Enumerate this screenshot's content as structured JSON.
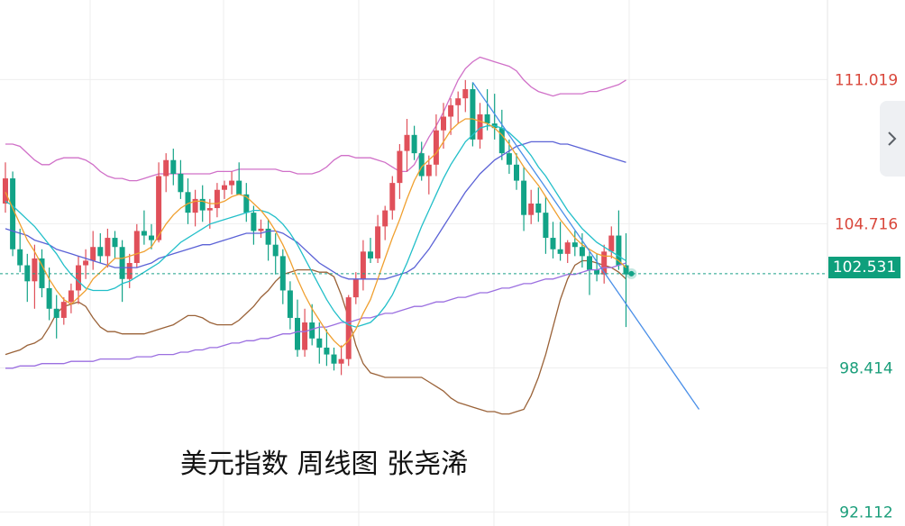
{
  "chart_data": {
    "type": "candlestick",
    "title": "美元指数 周线图 张尧浠",
    "y_axis": {
      "range": [
        91.5,
        114.5
      ],
      "labels": [
        {
          "value": 111.019,
          "text": "111.019",
          "color": "#d9473b"
        },
        {
          "value": 104.716,
          "text": "104.716",
          "color": "#d9473b"
        },
        {
          "value": 98.414,
          "text": "98.414",
          "color": "#1a9e7a"
        },
        {
          "value": 92.112,
          "text": "92.112",
          "color": "#1a9e7a"
        }
      ]
    },
    "current_price": {
      "value": 102.531,
      "text": "102.531",
      "color": "#0e9f7c"
    },
    "grid": true,
    "colors": {
      "up": "#e0505a",
      "down": "#12a387"
    },
    "candles": [
      [
        105.6,
        107.4,
        105.2,
        106.7
      ],
      [
        106.7,
        107.0,
        103.3,
        103.6
      ],
      [
        103.6,
        104.5,
        102.6,
        102.9
      ],
      [
        102.9,
        103.4,
        101.3,
        102.2
      ],
      [
        102.2,
        103.8,
        101.0,
        103.2
      ],
      [
        103.2,
        103.6,
        101.5,
        101.9
      ],
      [
        101.9,
        102.8,
        100.5,
        101.0
      ],
      [
        101.0,
        101.6,
        99.7,
        100.6
      ],
      [
        100.6,
        101.5,
        100.3,
        101.3
      ],
      [
        101.3,
        102.1,
        100.8,
        101.8
      ],
      [
        101.8,
        103.3,
        101.2,
        102.9
      ],
      [
        102.9,
        103.6,
        102.3,
        103.1
      ],
      [
        103.1,
        104.4,
        102.7,
        103.7
      ],
      [
        103.7,
        104.3,
        103.0,
        103.3
      ],
      [
        103.3,
        104.5,
        102.8,
        104.1
      ],
      [
        104.1,
        104.4,
        103.2,
        103.7
      ],
      [
        103.7,
        104.0,
        101.3,
        102.3
      ],
      [
        102.3,
        103.4,
        101.9,
        103.0
      ],
      [
        103.0,
        104.7,
        102.8,
        104.4
      ],
      [
        104.4,
        105.3,
        103.8,
        104.2
      ],
      [
        104.2,
        104.7,
        103.6,
        104.0
      ],
      [
        104.0,
        107.4,
        103.9,
        106.8
      ],
      [
        106.8,
        107.8,
        106.1,
        107.5
      ],
      [
        107.5,
        108.0,
        106.4,
        106.9
      ],
      [
        106.9,
        107.5,
        105.8,
        106.1
      ],
      [
        106.1,
        106.7,
        104.7,
        105.2
      ],
      [
        105.2,
        106.2,
        104.6,
        105.8
      ],
      [
        105.8,
        106.4,
        104.8,
        105.3
      ],
      [
        105.3,
        105.8,
        104.5,
        105.4
      ],
      [
        105.4,
        106.5,
        105.0,
        106.2
      ],
      [
        106.2,
        106.6,
        105.8,
        106.4
      ],
      [
        106.4,
        107.0,
        106.0,
        106.6
      ],
      [
        106.6,
        107.4,
        106.1,
        106.0
      ],
      [
        106.0,
        106.5,
        104.8,
        105.2
      ],
      [
        105.2,
        105.5,
        103.8,
        104.4
      ],
      [
        104.4,
        104.9,
        104.1,
        104.5
      ],
      [
        104.5,
        104.9,
        103.1,
        103.8
      ],
      [
        103.8,
        104.3,
        102.5,
        103.3
      ],
      [
        103.3,
        103.6,
        101.2,
        101.8
      ],
      [
        101.8,
        102.2,
        100.1,
        100.6
      ],
      [
        100.6,
        101.4,
        98.9,
        99.2
      ],
      [
        99.2,
        101.0,
        98.9,
        100.4
      ],
      [
        100.4,
        101.2,
        99.4,
        99.7
      ],
      [
        99.7,
        100.4,
        98.6,
        99.3
      ],
      [
        99.3,
        100.1,
        98.5,
        99.0
      ],
      [
        99.0,
        99.3,
        98.3,
        98.6
      ],
      [
        98.6,
        99.4,
        98.1,
        98.8
      ],
      [
        98.8,
        101.6,
        98.5,
        101.5
      ],
      [
        101.5,
        102.6,
        101.2,
        102.3
      ],
      [
        102.3,
        104.0,
        101.8,
        103.5
      ],
      [
        103.5,
        104.1,
        103.0,
        103.2
      ],
      [
        103.2,
        105.1,
        103.0,
        104.6
      ],
      [
        104.6,
        105.5,
        104.0,
        105.3
      ],
      [
        105.3,
        106.8,
        104.9,
        106.5
      ],
      [
        106.5,
        108.2,
        105.8,
        107.9
      ],
      [
        107.9,
        109.3,
        107.0,
        108.6
      ],
      [
        108.6,
        109.0,
        107.5,
        107.8
      ],
      [
        107.8,
        108.3,
        106.6,
        106.8
      ],
      [
        106.8,
        107.7,
        106.0,
        107.3
      ],
      [
        107.3,
        109.5,
        106.8,
        108.8
      ],
      [
        108.8,
        110.0,
        108.0,
        109.4
      ],
      [
        109.4,
        110.2,
        108.6,
        109.9
      ],
      [
        109.9,
        110.5,
        109.1,
        110.2
      ],
      [
        110.2,
        111.0,
        109.6,
        110.6
      ],
      [
        110.6,
        110.9,
        108.1,
        108.4
      ],
      [
        108.4,
        110.0,
        108.0,
        109.5
      ],
      [
        109.5,
        110.6,
        108.8,
        109.1
      ],
      [
        109.1,
        110.4,
        108.4,
        108.9
      ],
      [
        108.9,
        109.7,
        107.5,
        107.8
      ],
      [
        107.8,
        108.4,
        106.9,
        107.3
      ],
      [
        107.3,
        107.8,
        106.2,
        106.6
      ],
      [
        106.6,
        107.2,
        104.4,
        105.1
      ],
      [
        105.1,
        106.2,
        104.7,
        105.6
      ],
      [
        105.6,
        106.3,
        104.8,
        105.2
      ],
      [
        105.2,
        105.9,
        103.4,
        104.1
      ],
      [
        104.1,
        104.8,
        103.2,
        103.6
      ],
      [
        103.6,
        104.8,
        103.1,
        103.4
      ],
      [
        103.4,
        104.0,
        103.0,
        103.9
      ],
      [
        103.9,
        104.4,
        103.3,
        103.7
      ],
      [
        103.7,
        104.3,
        102.8,
        103.3
      ],
      [
        103.3,
        103.5,
        101.6,
        102.7
      ],
      [
        102.7,
        103.4,
        102.2,
        102.5
      ],
      [
        102.5,
        103.8,
        102.1,
        103.5
      ],
      [
        103.5,
        104.6,
        103.2,
        104.2
      ],
      [
        104.2,
        105.3,
        102.7,
        102.9
      ],
      [
        102.9,
        104.3,
        100.2,
        102.5
      ]
    ],
    "overlay_lines": {
      "ma_fast": {
        "color": "#f0a030",
        "values": [
          106.1,
          105.4,
          104.7,
          104.0,
          103.5,
          102.9,
          102.3,
          101.8,
          101.4,
          101.2,
          101.5,
          101.8,
          102.3,
          102.6,
          102.9,
          103.2,
          103.2,
          103.3,
          103.4,
          103.5,
          103.7,
          104.2,
          104.7,
          105.1,
          105.4,
          105.6,
          105.7,
          105.7,
          105.6,
          105.6,
          105.7,
          105.9,
          106.0,
          105.9,
          105.6,
          105.3,
          104.9,
          104.4,
          103.8,
          103.1,
          102.3,
          101.6,
          101.0,
          100.5,
          100.0,
          99.6,
          99.3,
          99.6,
          100.1,
          100.8,
          101.4,
          102.3,
          103.2,
          104.1,
          104.9,
          105.8,
          106.6,
          107.2,
          107.5,
          107.8,
          108.3,
          108.8,
          109.1,
          109.3,
          109.3,
          109.2,
          109.1,
          108.9,
          108.6,
          108.2,
          107.7,
          107.2,
          106.8,
          106.4,
          105.9,
          105.4,
          104.9,
          104.5,
          104.1,
          103.8,
          103.6,
          103.4,
          103.3,
          103.3,
          103.1,
          102.8
        ]
      },
      "ma_mid": {
        "color": "#22bfc9",
        "values": [
          105.7,
          105.5,
          105.2,
          104.9,
          104.6,
          104.2,
          103.8,
          103.4,
          102.9,
          102.5,
          102.2,
          101.9,
          101.8,
          101.8,
          101.8,
          101.9,
          102.1,
          102.2,
          102.4,
          102.6,
          102.8,
          103.0,
          103.3,
          103.6,
          103.9,
          104.1,
          104.3,
          104.5,
          104.7,
          104.8,
          104.9,
          105.0,
          105.1,
          105.2,
          105.3,
          105.3,
          105.2,
          105.0,
          104.7,
          104.3,
          103.8,
          103.2,
          102.6,
          102.0,
          101.4,
          100.9,
          100.5,
          100.3,
          100.2,
          100.3,
          100.4,
          100.7,
          101.1,
          101.6,
          102.3,
          103.0,
          103.8,
          104.6,
          105.3,
          106.0,
          106.7,
          107.3,
          107.8,
          108.3,
          108.6,
          108.9,
          109.0,
          109.0,
          108.9,
          108.7,
          108.4,
          108.1,
          107.7,
          107.2,
          106.8,
          106.3,
          105.8,
          105.3,
          104.9,
          104.5,
          104.2,
          103.9,
          103.7,
          103.5,
          103.3,
          103.1
        ]
      },
      "ma_slow": {
        "color": "#5b62d6",
        "values": [
          104.5,
          104.4,
          104.3,
          104.2,
          104.0,
          103.9,
          103.8,
          103.6,
          103.5,
          103.4,
          103.3,
          103.2,
          103.1,
          103.0,
          102.9,
          102.8,
          102.8,
          102.8,
          102.8,
          102.9,
          103.0,
          103.2,
          103.3,
          103.4,
          103.5,
          103.6,
          103.7,
          103.8,
          103.8,
          103.9,
          104.0,
          104.1,
          104.2,
          104.3,
          104.3,
          104.3,
          104.4,
          104.4,
          104.3,
          104.1,
          103.9,
          103.6,
          103.3,
          103.0,
          102.8,
          102.6,
          102.4,
          102.3,
          102.3,
          102.3,
          102.3,
          102.3,
          102.3,
          102.4,
          102.5,
          102.6,
          102.8,
          103.2,
          103.6,
          104.1,
          104.6,
          105.1,
          105.6,
          106.1,
          106.5,
          106.9,
          107.2,
          107.5,
          107.7,
          107.9,
          108.1,
          108.2,
          108.3,
          108.3,
          108.3,
          108.3,
          108.2,
          108.2,
          108.1,
          108.0,
          107.9,
          107.8,
          107.7,
          107.6,
          107.5,
          107.4
        ]
      },
      "ma_long": {
        "color": "#9b6fe0",
        "values": [
          98.4,
          98.4,
          98.5,
          98.5,
          98.5,
          98.6,
          98.6,
          98.6,
          98.6,
          98.7,
          98.7,
          98.7,
          98.7,
          98.8,
          98.8,
          98.8,
          98.8,
          98.8,
          98.9,
          98.9,
          98.9,
          99.0,
          99.0,
          99.0,
          99.1,
          99.1,
          99.2,
          99.2,
          99.3,
          99.3,
          99.4,
          99.5,
          99.5,
          99.6,
          99.6,
          99.7,
          99.7,
          99.8,
          99.9,
          99.9,
          100.0,
          100.0,
          100.1,
          100.2,
          100.2,
          100.3,
          100.4,
          100.4,
          100.5,
          100.6,
          100.6,
          100.7,
          100.8,
          100.8,
          100.9,
          101.0,
          101.1,
          101.1,
          101.2,
          101.3,
          101.3,
          101.4,
          101.5,
          101.5,
          101.6,
          101.7,
          101.7,
          101.8,
          101.9,
          101.9,
          102.0,
          102.1,
          102.1,
          102.2,
          102.3,
          102.3,
          102.4,
          102.5,
          102.5,
          102.6,
          102.7,
          102.7,
          102.8,
          102.8,
          102.9,
          103.0
        ]
      },
      "bollinger_upper": {
        "color": "#d070c8",
        "values": [
          108.2,
          108.2,
          108.1,
          107.8,
          107.5,
          107.3,
          107.3,
          107.5,
          107.6,
          107.6,
          107.6,
          107.5,
          107.3,
          107.0,
          106.8,
          106.7,
          106.7,
          106.6,
          106.6,
          106.7,
          106.8,
          106.9,
          106.9,
          106.9,
          106.9,
          106.9,
          106.9,
          106.9,
          106.9,
          107.0,
          107.0,
          107.0,
          107.1,
          107.1,
          107.1,
          107.1,
          107.1,
          107.1,
          107.0,
          107.0,
          106.9,
          106.9,
          106.9,
          107.0,
          107.2,
          107.5,
          107.7,
          107.7,
          107.6,
          107.6,
          107.6,
          107.5,
          107.4,
          107.2,
          107.0,
          107.0,
          107.3,
          107.9,
          108.5,
          109.0,
          109.6,
          110.3,
          111.0,
          111.5,
          111.8,
          112.0,
          111.9,
          111.8,
          111.7,
          111.6,
          111.4,
          111.0,
          110.7,
          110.5,
          110.4,
          110.3,
          110.4,
          110.4,
          110.4,
          110.4,
          110.5,
          110.5,
          110.6,
          110.7,
          110.8,
          111.0
        ]
      },
      "bollinger_lower": {
        "color": "#9a6238",
        "values": [
          99.0,
          99.1,
          99.2,
          99.4,
          99.5,
          99.7,
          100.2,
          100.8,
          101.1,
          101.2,
          101.3,
          101.1,
          100.6,
          100.2,
          100.0,
          100.0,
          99.9,
          99.9,
          99.9,
          99.9,
          100.0,
          100.1,
          100.2,
          100.3,
          100.5,
          100.7,
          100.7,
          100.6,
          100.4,
          100.3,
          100.3,
          100.3,
          100.5,
          100.8,
          101.1,
          101.5,
          101.8,
          102.2,
          102.5,
          102.6,
          102.7,
          102.7,
          102.7,
          102.6,
          102.6,
          102.4,
          101.6,
          100.6,
          99.4,
          98.6,
          98.2,
          98.1,
          98.0,
          98.0,
          98.0,
          98.0,
          98.0,
          98.0,
          97.8,
          97.6,
          97.4,
          97.1,
          96.9,
          96.8,
          96.7,
          96.6,
          96.5,
          96.5,
          96.4,
          96.4,
          96.5,
          96.6,
          97.2,
          98.0,
          99.0,
          100.2,
          101.4,
          102.3,
          102.9,
          103.1,
          103.1,
          103.0,
          102.9,
          102.8,
          102.6,
          102.3
        ]
      }
    },
    "trendline": {
      "color": "#4a8fe8",
      "points": [
        [
          64,
          110.9
        ],
        [
          95,
          96.6
        ]
      ]
    },
    "annotations": [
      "美元指数 周线图 张尧浠"
    ]
  }
}
